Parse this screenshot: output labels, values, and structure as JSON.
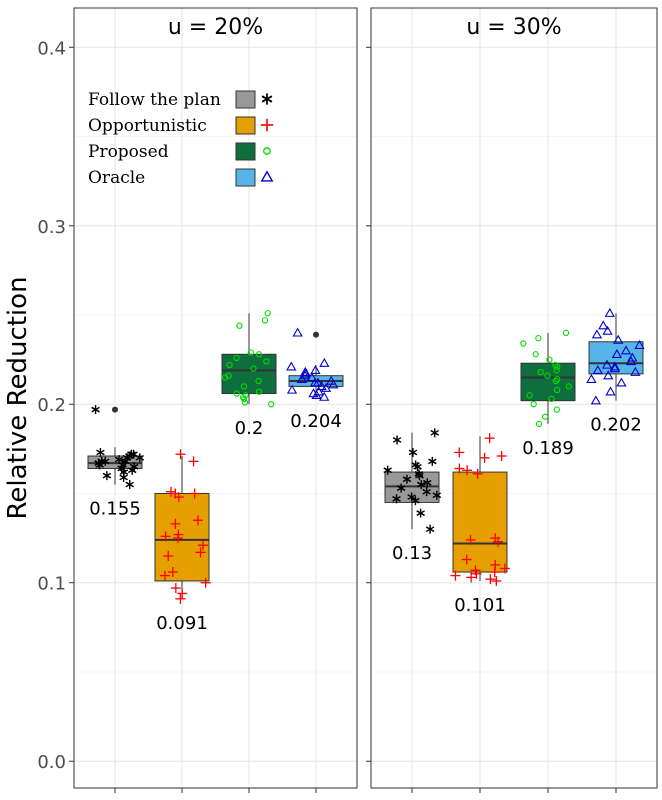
{
  "chart_data": {
    "type": "boxplot",
    "ylabel": "Relative Reduction",
    "xlabel": "",
    "ylim": [
      -0.015,
      0.422
    ],
    "yticks": [
      0.0,
      0.1,
      0.2,
      0.3,
      0.4
    ],
    "ytick_labels": [
      "0.0",
      "0.1",
      "0.2",
      "0.3",
      "0.4"
    ],
    "grid": true,
    "legend": {
      "placement": "top-left",
      "entries": [
        {
          "label": "Follow the plan",
          "fill": "#999999",
          "marker": "asterisk",
          "marker_color": "#000000"
        },
        {
          "label": "Opportunistic",
          "fill": "#E69F00",
          "marker": "plus",
          "marker_color": "#FF0000"
        },
        {
          "label": "Proposed",
          "fill": "#0E6E3E",
          "marker": "circle",
          "marker_color": "#00DD00"
        },
        {
          "label": "Oracle",
          "fill": "#56B4E9",
          "marker": "triangle",
          "marker_color": "#0000CC"
        }
      ]
    },
    "panels": [
      {
        "title": "u = 20%",
        "boxes": [
          {
            "name": "Follow the plan",
            "whisker_low": 0.155,
            "q1": 0.164,
            "median": 0.167,
            "q3": 0.171,
            "whisker_high": 0.176,
            "outliers": [
              0.197
            ],
            "label": "0.155",
            "points": [
              0.166,
              0.168,
              0.164,
              0.17,
              0.162,
              0.159,
              0.167,
              0.165,
              0.168,
              0.172,
              0.17,
              0.16,
              0.155,
              0.166,
              0.169,
              0.168,
              0.173,
              0.171,
              0.172,
              0.163,
              0.197
            ]
          },
          {
            "name": "Opportunistic",
            "whisker_low": 0.091,
            "q1": 0.101,
            "median": 0.124,
            "q3": 0.15,
            "whisker_high": 0.171,
            "outliers": [],
            "label": "0.091",
            "points": [
              0.172,
              0.168,
              0.15,
              0.151,
              0.133,
              0.121,
              0.117,
              0.125,
              0.127,
              0.135,
              0.126,
              0.104,
              0.106,
              0.097,
              0.094,
              0.1,
              0.091,
              0.15,
              0.115,
              0.148
            ]
          },
          {
            "name": "Proposed",
            "whisker_low": 0.2,
            "q1": 0.206,
            "median": 0.219,
            "q3": 0.228,
            "whisker_high": 0.251,
            "outliers": [],
            "label": "0.2",
            "points": [
              0.251,
              0.247,
              0.244,
              0.229,
              0.224,
              0.228,
              0.222,
              0.22,
              0.216,
              0.213,
              0.21,
              0.207,
              0.206,
              0.204,
              0.203,
              0.201,
              0.2,
              0.205,
              0.215,
              0.226
            ]
          },
          {
            "name": "Oracle",
            "whisker_low": 0.204,
            "q1": 0.21,
            "median": 0.213,
            "q3": 0.216,
            "whisker_high": 0.222,
            "outliers": [
              0.239
            ],
            "label": "0.204",
            "points": [
              0.24,
              0.223,
              0.221,
              0.218,
              0.216,
              0.215,
              0.214,
              0.213,
              0.212,
              0.212,
              0.211,
              0.21,
              0.209,
              0.208,
              0.207,
              0.206,
              0.205,
              0.204,
              0.217,
              0.219
            ]
          }
        ]
      },
      {
        "title": "u = 30%",
        "boxes": [
          {
            "name": "Follow the plan",
            "whisker_low": 0.13,
            "q1": 0.145,
            "median": 0.154,
            "q3": 0.162,
            "whisker_high": 0.184,
            "outliers": [],
            "label": "0.13",
            "points": [
              0.184,
              0.18,
              0.173,
              0.168,
              0.165,
              0.163,
              0.161,
              0.16,
              0.158,
              0.156,
              0.155,
              0.153,
              0.151,
              0.149,
              0.148,
              0.147,
              0.146,
              0.139,
              0.13,
              0.166
            ]
          },
          {
            "name": "Opportunistic",
            "whisker_low": 0.101,
            "q1": 0.106,
            "median": 0.122,
            "q3": 0.162,
            "whisker_high": 0.182,
            "outliers": [],
            "label": "0.101",
            "points": [
              0.181,
              0.173,
              0.171,
              0.164,
              0.163,
              0.161,
              0.125,
              0.124,
              0.123,
              0.113,
              0.11,
              0.107,
              0.105,
              0.104,
              0.103,
              0.102,
              0.101,
              0.106,
              0.108,
              0.17
            ]
          },
          {
            "name": "Proposed",
            "whisker_low": 0.189,
            "q1": 0.202,
            "median": 0.215,
            "q3": 0.223,
            "whisker_high": 0.24,
            "outliers": [],
            "label": "0.189",
            "points": [
              0.24,
              0.237,
              0.234,
              0.228,
              0.225,
              0.222,
              0.221,
              0.219,
              0.216,
              0.213,
              0.21,
              0.208,
              0.205,
              0.203,
              0.2,
              0.197,
              0.193,
              0.189,
              0.214,
              0.218
            ]
          },
          {
            "name": "Oracle",
            "whisker_low": 0.202,
            "q1": 0.217,
            "median": 0.223,
            "q3": 0.235,
            "whisker_high": 0.251,
            "outliers": [],
            "label": "0.202",
            "points": [
              0.251,
              0.244,
              0.241,
              0.239,
              0.236,
              0.233,
              0.23,
              0.228,
              0.226,
              0.224,
              0.222,
              0.221,
              0.22,
              0.219,
              0.218,
              0.216,
              0.214,
              0.212,
              0.207,
              0.202
            ]
          }
        ]
      }
    ]
  }
}
